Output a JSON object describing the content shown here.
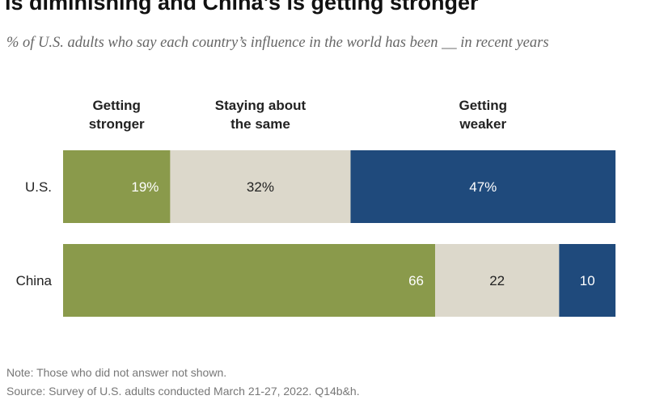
{
  "title": "is diminishing and China’s is getting stronger",
  "subtitle": "% of U.S. adults who say each country’s influence in the world has been __ in recent years",
  "note": "Note: Those who did not answer not shown.",
  "source": "Source: Survey of U.S. adults conducted March 21-27, 2022. Q14b&h.",
  "colors": {
    "stronger": "#8a9a4b",
    "same": "#dcd8cb",
    "weaker": "#1f4a7c",
    "label_on_dark": "#ffffff",
    "label_on_light": "#222222"
  },
  "chart_data": {
    "type": "bar",
    "orientation": "horizontal",
    "stacked": true,
    "categories": [
      "U.S.",
      "China"
    ],
    "series": [
      {
        "name": "Getting stronger",
        "header_lines": [
          "Getting",
          "stronger"
        ],
        "values": [
          19,
          66
        ],
        "labels": [
          "19%",
          "66"
        ]
      },
      {
        "name": "Staying about the same",
        "header_lines": [
          "Staying about",
          "the same"
        ],
        "values": [
          32,
          22
        ],
        "labels": [
          "32%",
          "22"
        ]
      },
      {
        "name": "Getting weaker",
        "header_lines": [
          "Getting",
          "weaker"
        ],
        "values": [
          47,
          10
        ],
        "labels": [
          "47%",
          "10"
        ]
      }
    ],
    "xlim": [
      0,
      100
    ],
    "grid": false,
    "legend": "column headers above bars"
  }
}
